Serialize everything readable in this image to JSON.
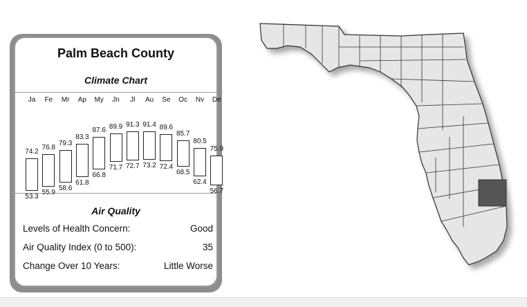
{
  "county": "Palm Beach County",
  "climate": {
    "title": "Climate Chart",
    "months": [
      "Ja",
      "Fe",
      "Mr",
      "Ap",
      "My",
      "Jn",
      "Jl",
      "Au",
      "Se",
      "Oc",
      "Nv",
      "De"
    ],
    "highs": [
      74.2,
      76.8,
      79.3,
      83.3,
      87.6,
      89.9,
      91.3,
      91.4,
      89.6,
      85.7,
      80.5,
      75.9
    ],
    "lows": [
      53.3,
      55.9,
      58.6,
      61.8,
      66.8,
      71.7,
      72.7,
      73.2,
      72.4,
      68.5,
      62.4,
      56.7
    ]
  },
  "air_quality": {
    "title": "Air Quality",
    "rows": [
      {
        "label": "Levels of Health Concern:",
        "value": "Good"
      },
      {
        "label": "Air Quality Index (0 to 500):",
        "value": "35"
      },
      {
        "label": "Change Over 10 Years:",
        "value": "Little Worse"
      }
    ]
  },
  "map": {
    "highlight_color": "#555555",
    "fill_color": "#e6e6e6",
    "stroke_color": "#333333"
  }
}
